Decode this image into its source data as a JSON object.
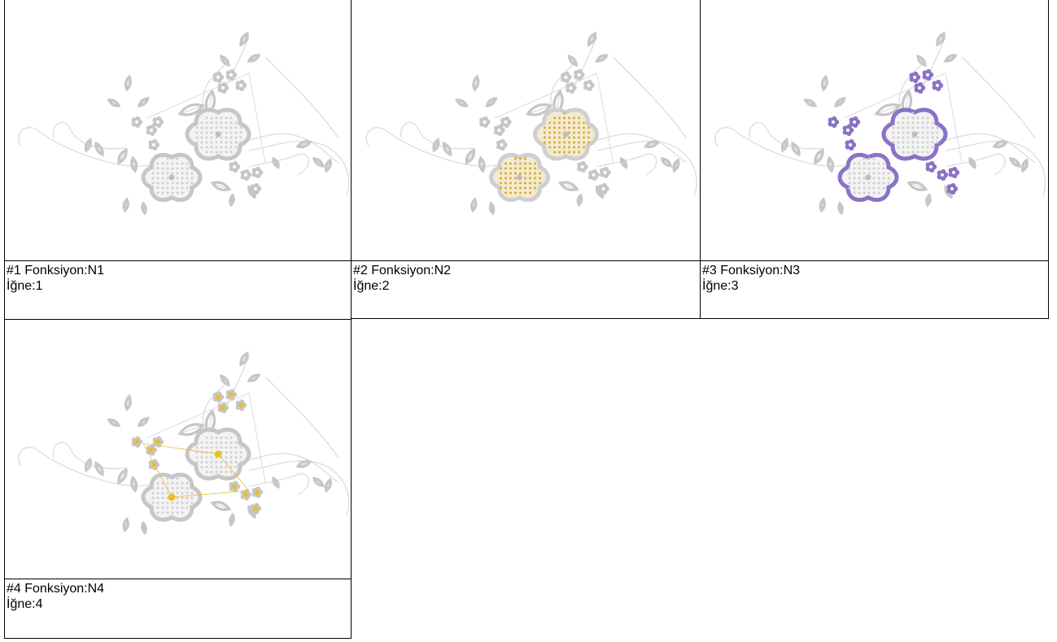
{
  "cells": [
    {
      "function_line": "#1 Fonksiyon:N1",
      "needle_line": "İğne:1",
      "highlight": "none",
      "highlight_color": "#c8c8c8"
    },
    {
      "function_line": "#2 Fonksiyon:N2",
      "needle_line": "İğne:2",
      "highlight": "big-flowers",
      "highlight_color": "#d4ae38"
    },
    {
      "function_line": "#3 Fonksiyon:N3",
      "needle_line": "İğne:3",
      "highlight": "outlines",
      "highlight_color": "#8a72c4"
    },
    {
      "function_line": "#4 Fonksiyon:N4",
      "needle_line": "İğne:4",
      "highlight": "centers",
      "highlight_color": "#e8bf2a"
    }
  ],
  "colors": {
    "base_stitch": "#c6c6c6",
    "base_light": "#dcdcdc",
    "border": "#000000"
  }
}
